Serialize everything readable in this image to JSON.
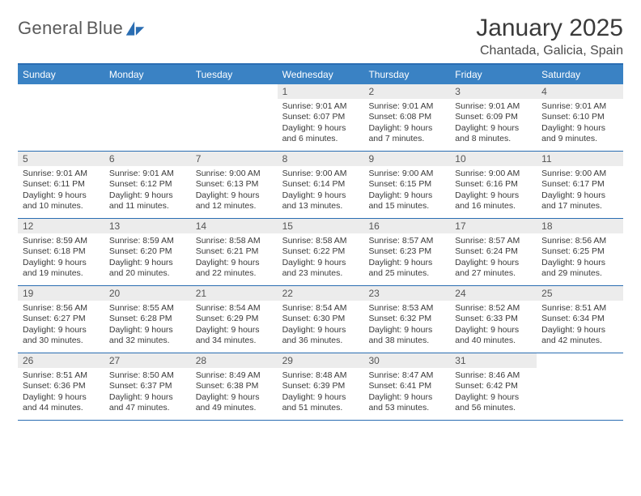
{
  "brand": {
    "name_a": "General",
    "name_b": "Blue"
  },
  "title": "January 2025",
  "location": "Chantada, Galicia, Spain",
  "colors": {
    "header_bg": "#3a82c4",
    "header_border": "#2a6db2",
    "daynum_bg": "#ececec",
    "text": "#3a3a3a"
  },
  "dow": [
    "Sunday",
    "Monday",
    "Tuesday",
    "Wednesday",
    "Thursday",
    "Friday",
    "Saturday"
  ],
  "weeks": [
    [
      {
        "n": "",
        "sr": "",
        "ss": "",
        "dl": ""
      },
      {
        "n": "",
        "sr": "",
        "ss": "",
        "dl": ""
      },
      {
        "n": "",
        "sr": "",
        "ss": "",
        "dl": ""
      },
      {
        "n": "1",
        "sr": "9:01 AM",
        "ss": "6:07 PM",
        "dl": "9 hours and 6 minutes."
      },
      {
        "n": "2",
        "sr": "9:01 AM",
        "ss": "6:08 PM",
        "dl": "9 hours and 7 minutes."
      },
      {
        "n": "3",
        "sr": "9:01 AM",
        "ss": "6:09 PM",
        "dl": "9 hours and 8 minutes."
      },
      {
        "n": "4",
        "sr": "9:01 AM",
        "ss": "6:10 PM",
        "dl": "9 hours and 9 minutes."
      }
    ],
    [
      {
        "n": "5",
        "sr": "9:01 AM",
        "ss": "6:11 PM",
        "dl": "9 hours and 10 minutes."
      },
      {
        "n": "6",
        "sr": "9:01 AM",
        "ss": "6:12 PM",
        "dl": "9 hours and 11 minutes."
      },
      {
        "n": "7",
        "sr": "9:00 AM",
        "ss": "6:13 PM",
        "dl": "9 hours and 12 minutes."
      },
      {
        "n": "8",
        "sr": "9:00 AM",
        "ss": "6:14 PM",
        "dl": "9 hours and 13 minutes."
      },
      {
        "n": "9",
        "sr": "9:00 AM",
        "ss": "6:15 PM",
        "dl": "9 hours and 15 minutes."
      },
      {
        "n": "10",
        "sr": "9:00 AM",
        "ss": "6:16 PM",
        "dl": "9 hours and 16 minutes."
      },
      {
        "n": "11",
        "sr": "9:00 AM",
        "ss": "6:17 PM",
        "dl": "9 hours and 17 minutes."
      }
    ],
    [
      {
        "n": "12",
        "sr": "8:59 AM",
        "ss": "6:18 PM",
        "dl": "9 hours and 19 minutes."
      },
      {
        "n": "13",
        "sr": "8:59 AM",
        "ss": "6:20 PM",
        "dl": "9 hours and 20 minutes."
      },
      {
        "n": "14",
        "sr": "8:58 AM",
        "ss": "6:21 PM",
        "dl": "9 hours and 22 minutes."
      },
      {
        "n": "15",
        "sr": "8:58 AM",
        "ss": "6:22 PM",
        "dl": "9 hours and 23 minutes."
      },
      {
        "n": "16",
        "sr": "8:57 AM",
        "ss": "6:23 PM",
        "dl": "9 hours and 25 minutes."
      },
      {
        "n": "17",
        "sr": "8:57 AM",
        "ss": "6:24 PM",
        "dl": "9 hours and 27 minutes."
      },
      {
        "n": "18",
        "sr": "8:56 AM",
        "ss": "6:25 PM",
        "dl": "9 hours and 29 minutes."
      }
    ],
    [
      {
        "n": "19",
        "sr": "8:56 AM",
        "ss": "6:27 PM",
        "dl": "9 hours and 30 minutes."
      },
      {
        "n": "20",
        "sr": "8:55 AM",
        "ss": "6:28 PM",
        "dl": "9 hours and 32 minutes."
      },
      {
        "n": "21",
        "sr": "8:54 AM",
        "ss": "6:29 PM",
        "dl": "9 hours and 34 minutes."
      },
      {
        "n": "22",
        "sr": "8:54 AM",
        "ss": "6:30 PM",
        "dl": "9 hours and 36 minutes."
      },
      {
        "n": "23",
        "sr": "8:53 AM",
        "ss": "6:32 PM",
        "dl": "9 hours and 38 minutes."
      },
      {
        "n": "24",
        "sr": "8:52 AM",
        "ss": "6:33 PM",
        "dl": "9 hours and 40 minutes."
      },
      {
        "n": "25",
        "sr": "8:51 AM",
        "ss": "6:34 PM",
        "dl": "9 hours and 42 minutes."
      }
    ],
    [
      {
        "n": "26",
        "sr": "8:51 AM",
        "ss": "6:36 PM",
        "dl": "9 hours and 44 minutes."
      },
      {
        "n": "27",
        "sr": "8:50 AM",
        "ss": "6:37 PM",
        "dl": "9 hours and 47 minutes."
      },
      {
        "n": "28",
        "sr": "8:49 AM",
        "ss": "6:38 PM",
        "dl": "9 hours and 49 minutes."
      },
      {
        "n": "29",
        "sr": "8:48 AM",
        "ss": "6:39 PM",
        "dl": "9 hours and 51 minutes."
      },
      {
        "n": "30",
        "sr": "8:47 AM",
        "ss": "6:41 PM",
        "dl": "9 hours and 53 minutes."
      },
      {
        "n": "31",
        "sr": "8:46 AM",
        "ss": "6:42 PM",
        "dl": "9 hours and 56 minutes."
      },
      {
        "n": "",
        "sr": "",
        "ss": "",
        "dl": ""
      }
    ]
  ],
  "labels": {
    "sunrise": "Sunrise: ",
    "sunset": "Sunset: ",
    "daylight": "Daylight: "
  }
}
